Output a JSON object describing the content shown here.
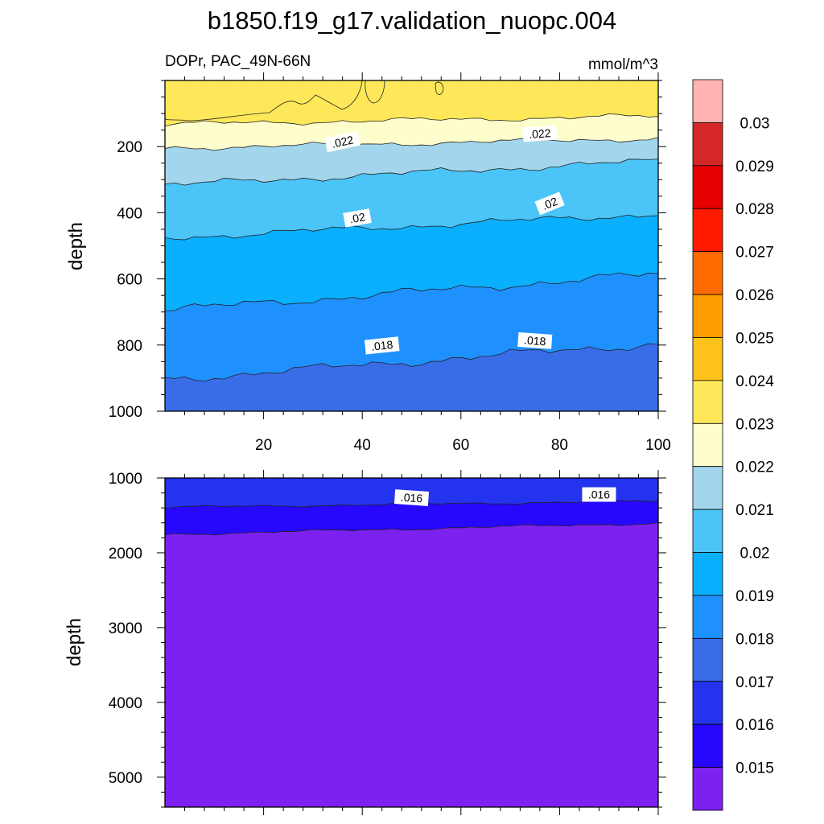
{
  "chart_data": [
    {
      "type": "heatmap",
      "panel": "upper",
      "title": "b1850.f19_g17.validation_nuopc.004",
      "left_string": "DOPr, PAC_49N-66N",
      "right_string": "mmol/m^3",
      "ylabel": "depth",
      "xlim": [
        0,
        100
      ],
      "ylim": [
        1000,
        0
      ],
      "x_ticks": [
        "20",
        "40",
        "60",
        "80",
        "100"
      ],
      "y_ticks": [
        "200",
        "400",
        "600",
        "800",
        "1000"
      ],
      "contour_labels": [
        ".022",
        ".022",
        ".02",
        ".02",
        ".018",
        ".018"
      ],
      "bands": [
        {
          "value": 0.0225,
          "color": "#fee85a",
          "top_depth": 0,
          "bottom_depth": 120
        },
        {
          "value": 0.0221,
          "color": "#fefecc",
          "top_depth": 120,
          "bottom_depth": 190
        },
        {
          "value": 0.0215,
          "color": "#a3d6ec",
          "top_depth": 190,
          "bottom_depth": 280
        },
        {
          "value": 0.0205,
          "color": "#4bc4f8",
          "top_depth": 280,
          "bottom_depth": 440
        },
        {
          "value": 0.0195,
          "color": "#0aaffe",
          "top_depth": 440,
          "bottom_depth": 640
        },
        {
          "value": 0.0185,
          "color": "#1f91ff",
          "top_depth": 640,
          "bottom_depth": 850
        },
        {
          "value": 0.0175,
          "color": "#396de8",
          "top_depth": 850,
          "bottom_depth": 1000
        }
      ]
    },
    {
      "type": "heatmap",
      "panel": "lower",
      "ylabel": "depth",
      "xlim": [
        0,
        100
      ],
      "ylim": [
        5400,
        1000
      ],
      "y_ticks": [
        "1000",
        "2000",
        "3000",
        "4000",
        "5000"
      ],
      "contour_labels": [
        ".016",
        ".016"
      ],
      "bands": [
        {
          "value": 0.0165,
          "color": "#2434ee",
          "top_depth": 1000,
          "bottom_depth": 1350
        },
        {
          "value": 0.0155,
          "color": "#2708fc",
          "top_depth": 1350,
          "bottom_depth": 1680
        },
        {
          "value": 0.0145,
          "color": "#7d21f0",
          "top_depth": 1680,
          "bottom_depth": 5400
        }
      ]
    }
  ],
  "colorbar": {
    "labels": [
      "0.03",
      "0.029",
      "0.028",
      "0.027",
      "0.026",
      "0.025",
      "0.024",
      "0.023",
      "0.022",
      "0.021",
      "0.02",
      "0.019",
      "0.018",
      "0.017",
      "0.016",
      "0.015"
    ],
    "colors": [
      "#ffb3b3",
      "#d62727",
      "#e60000",
      "#ff1a00",
      "#ff6a00",
      "#ff9e00",
      "#ffc21a",
      "#fee85a",
      "#fefecc",
      "#a3d6ec",
      "#4bc4f8",
      "#0aaffe",
      "#1f91ff",
      "#396de8",
      "#2434ee",
      "#2708fc",
      "#7d21f0"
    ]
  }
}
